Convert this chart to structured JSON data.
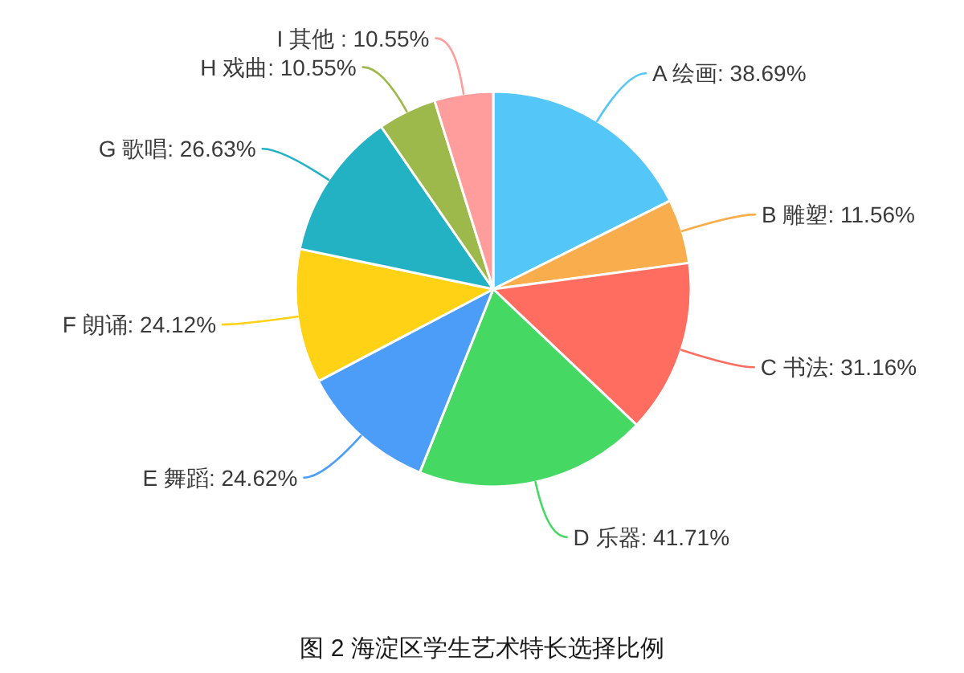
{
  "chart_data": {
    "type": "pie",
    "title": "图 2 海淀区学生艺术特长选择比例",
    "categories": [
      "A 绘画",
      "B 雕塑",
      "C 书法",
      "D 乐器",
      "E 舞蹈",
      "F 朗诵",
      "G 歌唱",
      "H 戏曲",
      "I 其他 "
    ],
    "values": [
      38.69,
      11.56,
      31.16,
      41.71,
      24.62,
      24.12,
      26.63,
      10.55,
      10.55
    ],
    "value_labels": [
      "38.69%",
      "11.56%",
      "31.16%",
      "41.71%",
      "24.62%",
      "24.12%",
      "26.63%",
      "10.55%",
      "10.55%"
    ],
    "colors": [
      "#55c6f8",
      "#f9ad4c",
      "#ff6d61",
      "#45d964",
      "#4b9df8",
      "#ffd215",
      "#22b2c4",
      "#9db94b",
      "#ff9c9c"
    ]
  }
}
